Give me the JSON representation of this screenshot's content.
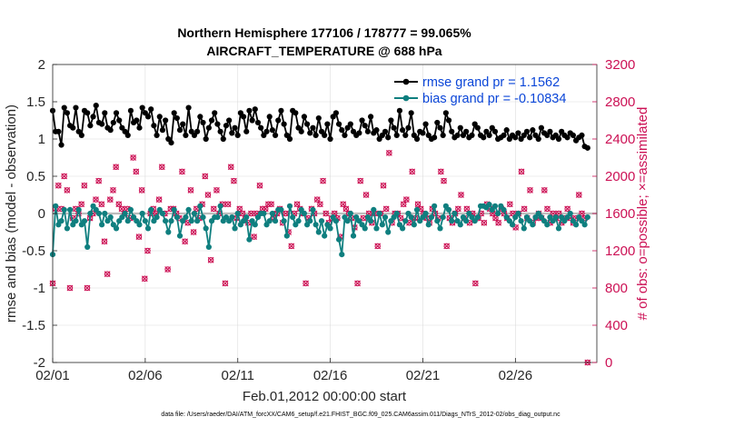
{
  "chart_data": {
    "type": "line",
    "title_line1": "Northern Hemisphere 177106 / 178777 = 99.065%",
    "title_line2": "AIRCRAFT_TEMPERATURE @ 688 hPa",
    "xlabel": "Feb.01,2012 00:00:00 start",
    "ylabel_left": "rmse and bias (model - observation)",
    "ylabel_right": "# of obs: o=possible; ×=assimilated",
    "footer": "data file: /Users/raeder/DAI/ATM_forcXX/CAM6_setup/f.e21.FHIST_BGC.f09_025.CAM6assim.011/Diags_NTrS_2012-02/obs_diag_output.nc",
    "xlim": [
      0,
      29.4
    ],
    "x_ticks": [
      {
        "pos": 0,
        "label": "02/01"
      },
      {
        "pos": 5,
        "label": "02/06"
      },
      {
        "pos": 10,
        "label": "02/11"
      },
      {
        "pos": 15,
        "label": "02/16"
      },
      {
        "pos": 20,
        "label": "02/21"
      },
      {
        "pos": 25,
        "label": "02/26"
      }
    ],
    "ylim_left": [
      -2,
      2
    ],
    "left_ticks": [
      "2",
      "1.5",
      "1",
      "0.5",
      "0",
      "-0.5",
      "-1",
      "-1.5",
      "-2"
    ],
    "left_tick_values": [
      2,
      1.5,
      1,
      0.5,
      0,
      -0.5,
      -1,
      -1.5,
      -2
    ],
    "ylim_right": [
      0,
      3200
    ],
    "right_ticks": [
      "3200",
      "2800",
      "2400",
      "2000",
      "1600",
      "1200",
      "800",
      "400",
      "0"
    ],
    "right_tick_values": [
      3200,
      2800,
      2400,
      2000,
      1600,
      1200,
      800,
      400,
      0
    ],
    "legend": [
      {
        "label": "rmse grand pr = 1.1562",
        "color": "#000000"
      },
      {
        "label": "bias grand pr = -0.10834",
        "color": "#0f7f7f"
      }
    ],
    "colors": {
      "rmse": "#000000",
      "bias": "#0f7f7f",
      "obs": "#cc1155",
      "zero_line": "#bdbdbd",
      "grid": "#dcdcdc"
    },
    "series": [
      {
        "name": "rmse",
        "axis": "left",
        "values": [
          1.38,
          1.1,
          1.1,
          0.92,
          1.42,
          1.35,
          1.18,
          1.15,
          1.42,
          1.1,
          1.05,
          1.38,
          1.35,
          1.18,
          1.3,
          1.45,
          1.22,
          1.2,
          1.35,
          1.15,
          1.12,
          1.22,
          1.35,
          1.25,
          1.15,
          1.1,
          1.05,
          1.38,
          1.22,
          1.25,
          1.15,
          1.42,
          1.35,
          1.3,
          1.4,
          1.18,
          1.05,
          1.3,
          1.12,
          1.25,
          1.0,
          0.95,
          1.35,
          1.28,
          1.12,
          1.2,
          1.05,
          1.42,
          1.1,
          1.05,
          1.1,
          1.3,
          1.22,
          1.0,
          1.15,
          1.25,
          1.35,
          1.2,
          1.1,
          1.0,
          1.18,
          1.25,
          1.08,
          1.15,
          1.05,
          1.35,
          1.3,
          1.1,
          1.38,
          1.25,
          1.4,
          1.22,
          1.15,
          1.05,
          1.1,
          1.3,
          1.12,
          1.05,
          1.25,
          1.38,
          1.2,
          1.05,
          1.0,
          1.38,
          1.35,
          1.15,
          1.1,
          1.3,
          1.2,
          1.08,
          1.15,
          1.05,
          1.28,
          1.1,
          1.05,
          1.2,
          1.0,
          1.3,
          1.35,
          1.2,
          1.12,
          1.05,
          1.15,
          1.2,
          1.1,
          1.05,
          1.08,
          1.25,
          1.18,
          1.1,
          1.3,
          1.08,
          1.12,
          1.0,
          1.05,
          1.1,
          1.02,
          1.25,
          1.15,
          1.05,
          1.38,
          1.12,
          1.05,
          1.15,
          1.35,
          1.05,
          1.0,
          1.1,
          1.08,
          1.2,
          1.05,
          1.0,
          1.02,
          1.22,
          1.15,
          1.05,
          1.35,
          1.25,
          1.1,
          1.02,
          1.05,
          1.15,
          1.05,
          1.1,
          1.02,
          1.05,
          1.2,
          1.15,
          1.05,
          1.02,
          1.1,
          1.05,
          1.15,
          1.1,
          1.0,
          1.02,
          1.05,
          1.12,
          1.0,
          1.05,
          1.02,
          1.08,
          1.0,
          1.05,
          1.1,
          1.02,
          1.12,
          1.05,
          1.0,
          1.15,
          1.08,
          1.05,
          1.1,
          1.02,
          1.05,
          1.0,
          1.1,
          1.05,
          1.02,
          1.08,
          1.05,
          0.98,
          1.02,
          1.05,
          0.9,
          0.88
        ]
      },
      {
        "name": "bias",
        "axis": "left",
        "values": [
          -0.55,
          0.1,
          -0.15,
          -0.1,
          0.05,
          -0.2,
          0.05,
          -0.15,
          -0.1,
          0.05,
          -0.15,
          -0.1,
          -0.45,
          0.0,
          0.1,
          0.05,
          0.0,
          -0.15,
          0.0,
          -0.1,
          -0.05,
          -0.15,
          -0.2,
          -0.1,
          -0.05,
          0.0,
          -0.1,
          0.05,
          -0.05,
          -0.1,
          -0.15,
          0.0,
          -0.1,
          -0.2,
          0.05,
          -0.1,
          -0.05,
          0.05,
          0.0,
          -0.1,
          -0.25,
          -0.1,
          0.05,
          -0.05,
          -0.3,
          -0.1,
          -0.05,
          0.05,
          -0.1,
          0.0,
          -0.1,
          0.1,
          -0.05,
          -0.2,
          -0.45,
          -0.1,
          -0.05,
          -0.05,
          0.1,
          -0.1,
          -0.05,
          -0.1,
          -0.05,
          -0.2,
          0.0,
          -0.15,
          -0.1,
          -0.05,
          -0.35,
          -0.1,
          -0.15,
          -0.05,
          0.0,
          0.0,
          -0.15,
          -0.1,
          0.0,
          -0.1,
          0.05,
          0.05,
          -0.1,
          -0.3,
          0.1,
          -0.05,
          -0.15,
          -0.1,
          0.05,
          0.0,
          -0.15,
          -0.1,
          0.05,
          -0.15,
          -0.25,
          -0.1,
          -0.3,
          -0.15,
          -0.2,
          -0.05,
          -0.1,
          -0.35,
          -0.55,
          -0.05,
          -0.1,
          0.0,
          -0.3,
          -0.05,
          -0.1,
          -0.15,
          -0.2,
          -0.05,
          -0.1,
          0.05,
          -0.2,
          0.0,
          -0.15,
          -0.05,
          -0.25,
          -0.1,
          -0.05,
          0.0,
          -0.15,
          -0.2,
          -0.1,
          0.0,
          -0.05,
          -0.15,
          0.05,
          -0.1,
          -0.05,
          0.0,
          -0.15,
          -0.05,
          0.1,
          -0.1,
          -0.2,
          -0.05,
          0.1,
          0.05,
          -0.1,
          0.0,
          -0.1,
          -0.15,
          -0.05,
          -0.1,
          0.0,
          -0.05,
          -0.1,
          -0.05,
          0.1,
          0.1,
          0.08,
          0.12,
          0.05,
          0.1,
          0.0,
          0.1,
          0.05,
          -0.05,
          -0.1,
          -0.15,
          -0.05,
          0.0,
          -0.1,
          -0.2,
          -0.05,
          -0.1,
          -0.15,
          -0.05,
          0.0,
          -0.05,
          -0.1,
          -0.15,
          -0.05,
          -0.1,
          -0.05,
          -0.2,
          -0.05,
          -0.1,
          -0.05,
          0.0,
          -0.1,
          -0.15,
          -0.05,
          -0.1,
          -0.15,
          -0.05
        ]
      },
      {
        "name": "obs_possible",
        "axis": "right",
        "values": [
          850,
          1650,
          1900,
          1650,
          2000,
          1850,
          800,
          1550,
          1650,
          1600,
          1700,
          1900,
          800,
          1550,
          1600,
          1750,
          1950,
          1700,
          1300,
          950,
          1750,
          1850,
          2100,
          1700,
          1650,
          1600,
          1650,
          1550,
          2200,
          2050,
          1350,
          1850,
          900,
          1200,
          1600,
          1650,
          1600,
          1750,
          2100,
          1600,
          1000,
          1650,
          1650,
          1600,
          1550,
          2050,
          1300,
          1500,
          1850,
          1400,
          1650,
          1550,
          1700,
          2000,
          1800,
          1100,
          1650,
          1850,
          1600,
          1700,
          850,
          1700,
          2100,
          1950,
          1550,
          1650,
          1600,
          1550,
          1500,
          1600,
          1350,
          1600,
          1900,
          1650,
          1650,
          1700,
          1700,
          1550,
          1600,
          1650,
          1500,
          1600,
          1400,
          1250,
          1600,
          1700,
          1650,
          1600,
          850,
          1550,
          1650,
          1600,
          1750,
          1700,
          1950,
          1600,
          1500,
          1550,
          1600,
          1550,
          1350,
          1700,
          1650,
          1600,
          1550,
          1450,
          850,
          1950,
          1550,
          1800,
          1600,
          1500,
          1600,
          1250,
          1600,
          1900,
          1650,
          2250,
          1500,
          1600,
          1600,
          1550,
          1700,
          1750,
          1500,
          2050,
          1550,
          1700,
          1650,
          1600,
          1550,
          1500,
          1650,
          1600,
          1550,
          2050,
          1950,
          1250,
          1550,
          1500,
          1600,
          1650,
          1800,
          1550,
          1650,
          1500,
          1600,
          850,
          1550,
          1600,
          1500,
          1700,
          1650,
          1600,
          1550,
          1500,
          1650,
          1600,
          1550,
          1700,
          1600,
          1450,
          1600,
          2050,
          1650,
          1550,
          1850,
          1500,
          1550,
          1600,
          1550,
          1850,
          1650,
          1500,
          1600,
          1550,
          1600,
          1500,
          1550,
          1650,
          1550,
          1500,
          1550,
          1800,
          1600,
          1550,
          0
        ]
      },
      {
        "name": "obs_assimilated",
        "axis": "right",
        "values": [
          850,
          1650,
          1900,
          1650,
          2000,
          1850,
          800,
          1550,
          1650,
          1600,
          1700,
          1900,
          800,
          1550,
          1600,
          1750,
          1950,
          1700,
          1300,
          950,
          1750,
          1850,
          2100,
          1700,
          1650,
          1600,
          1650,
          1550,
          2200,
          2050,
          1350,
          1850,
          900,
          1200,
          1600,
          1650,
          1600,
          1750,
          2100,
          1600,
          1000,
          1650,
          1650,
          1600,
          1550,
          2050,
          1300,
          1500,
          1850,
          1400,
          1650,
          1550,
          1700,
          2000,
          1800,
          1100,
          1650,
          1850,
          1600,
          1700,
          850,
          1700,
          2100,
          1950,
          1550,
          1650,
          1600,
          1550,
          1500,
          1600,
          1350,
          1600,
          1900,
          1650,
          1650,
          1700,
          1700,
          1550,
          1600,
          1650,
          1500,
          1600,
          1400,
          1250,
          1600,
          1700,
          1650,
          1600,
          850,
          1550,
          1650,
          1600,
          1750,
          1700,
          1950,
          1600,
          1500,
          1550,
          1600,
          1550,
          1350,
          1700,
          1650,
          1600,
          1550,
          1450,
          850,
          1950,
          1550,
          1800,
          1600,
          1500,
          1600,
          1250,
          1600,
          1900,
          1650,
          2250,
          1500,
          1600,
          1600,
          1550,
          1700,
          1750,
          1500,
          2050,
          1550,
          1700,
          1650,
          1600,
          1550,
          1500,
          1650,
          1600,
          1550,
          2050,
          1950,
          1250,
          1550,
          1500,
          1600,
          1650,
          1800,
          1550,
          1650,
          1500,
          1600,
          850,
          1550,
          1600,
          1500,
          1700,
          1650,
          1600,
          1550,
          1500,
          1650,
          1600,
          1550,
          1700,
          1600,
          1450,
          1600,
          2050,
          1650,
          1550,
          1850,
          1500,
          1550,
          1600,
          1550,
          1850,
          1650,
          1500,
          1600,
          1550,
          1600,
          1500,
          1550,
          1650,
          1550,
          1500,
          1550,
          1800,
          1600,
          1550,
          0
        ]
      }
    ]
  }
}
